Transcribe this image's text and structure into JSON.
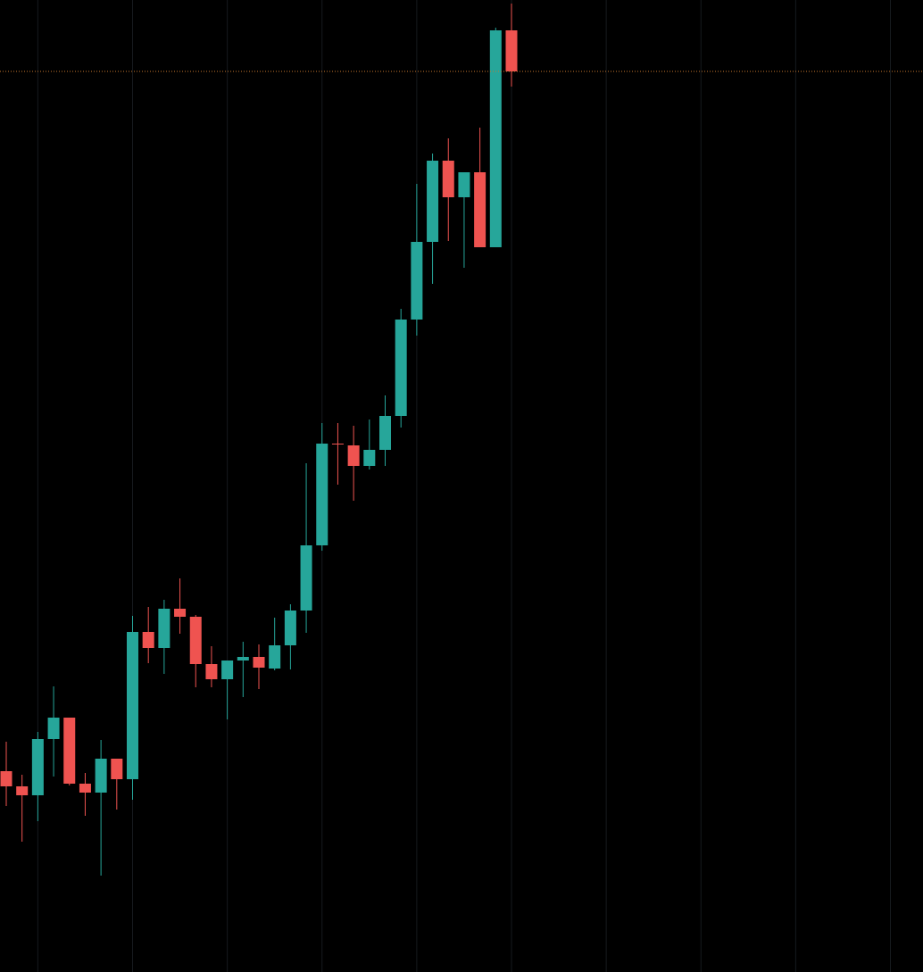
{
  "chart_data": {
    "type": "candlestick",
    "categories": [
      null,
      null,
      null,
      null,
      null,
      null,
      null,
      null,
      null,
      null,
      null,
      null,
      null,
      null,
      null,
      null,
      null,
      null,
      null,
      null,
      null,
      null,
      null,
      null,
      null,
      null,
      null,
      null,
      null,
      null,
      null,
      null,
      null
    ],
    "open": [
      225,
      208,
      198,
      261,
      285,
      211,
      201,
      239,
      216,
      381,
      363,
      407,
      398,
      345,
      328,
      349,
      353,
      340,
      366,
      405,
      478,
      592,
      590,
      567,
      585,
      623,
      731,
      818,
      909,
      868,
      896,
      812,
      1055
    ],
    "high": [
      258,
      221,
      269,
      320,
      285,
      223,
      260,
      239,
      399,
      409,
      417,
      441,
      400,
      365,
      349,
      370,
      367,
      397,
      412,
      570,
      615,
      615,
      612,
      619,
      646,
      743,
      883,
      917,
      934,
      896,
      946,
      1058,
      1085
    ],
    "low": [
      186,
      146,
      169,
      219,
      209,
      175,
      108,
      182,
      193,
      346,
      334,
      379,
      319,
      319,
      283,
      308,
      317,
      338,
      339,
      380,
      472,
      546,
      528,
      563,
      567,
      610,
      713,
      771,
      819,
      789,
      812,
      812,
      992
    ],
    "close": [
      208,
      198,
      261,
      285,
      211,
      201,
      239,
      216,
      381,
      363,
      407,
      398,
      345,
      328,
      349,
      353,
      341,
      366,
      405,
      478,
      592,
      591,
      567,
      585,
      623,
      731,
      818,
      909,
      868,
      896,
      812,
      1055,
      1009
    ],
    "up_color": "#26a69a",
    "down_color": "#ef5350",
    "ylim": [
      0,
      1089
    ],
    "grid": true,
    "last_price_line": true,
    "last_price_color": "#c8782e"
  }
}
